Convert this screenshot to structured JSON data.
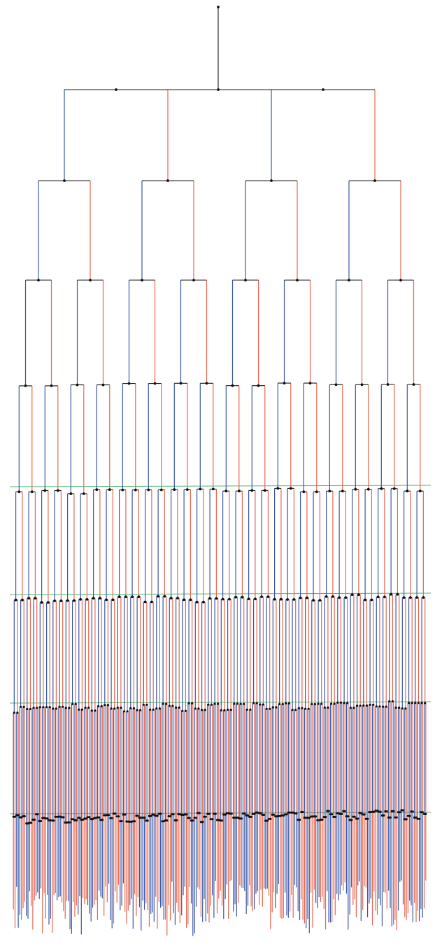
{
  "figure": {
    "kind": "binary-tree-dendrogram",
    "depth": 8,
    "levels": 9,
    "leaf_count": 256,
    "node_count": 511,
    "internal_node_count": 255,
    "levels_with_guide_lines": [
      5,
      6,
      7,
      8
    ]
  },
  "colors": {
    "background": "#ffffff",
    "left_child_edge": "#3a57a6",
    "right_child_edge": "#e8664f",
    "sibling_connector": "#1a1a1a",
    "node": "#111111",
    "guide_line": "#4fb86a"
  }
}
